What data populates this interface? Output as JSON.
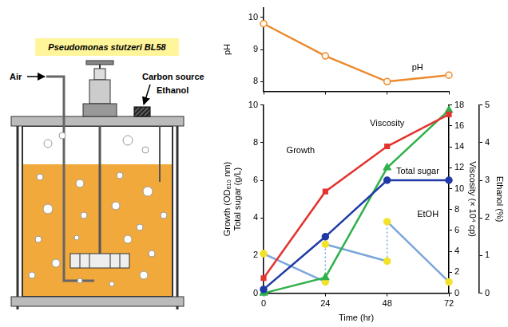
{
  "diagram": {
    "label": "Pseudomonas stutzeri BL58",
    "air": "Air",
    "feed": [
      "Carbon source",
      "Ethanol"
    ]
  },
  "chart_data": [
    {
      "type": "line",
      "ylabel": "pH",
      "x": [
        0,
        24,
        48,
        72
      ],
      "xlim": [
        0,
        72
      ],
      "xticks": [
        0,
        24,
        48,
        72
      ],
      "ylim": [
        7.7,
        10.3
      ],
      "yticks": [
        8,
        9,
        10
      ],
      "tick_labels": "y",
      "grid": false,
      "series": [
        {
          "name": "pH",
          "color": "#ec8a2e",
          "marker": "open_circle",
          "line_style": "solid",
          "values": [
            9.8,
            8.8,
            8.0,
            8.2
          ]
        }
      ]
    },
    {
      "type": "line",
      "xlabel": "Time (hr)",
      "ylabel": [
        "Growth (OD₆₁₀ nm)",
        "Total sugar (g/L)"
      ],
      "y2label": "Viscosity (× 10⁴ cp)",
      "y3label": "Ethanol (%)",
      "x": [
        0,
        24,
        48,
        72
      ],
      "xlim": [
        0,
        72
      ],
      "xticks": [
        0,
        24,
        48,
        72
      ],
      "ylim": [
        0,
        10
      ],
      "yticks": [
        0,
        2,
        4,
        6,
        8,
        10
      ],
      "y2lim": [
        0,
        18
      ],
      "y2ticks": [
        0,
        2,
        4,
        6,
        8,
        10,
        12,
        14,
        16,
        18
      ],
      "y3lim": [
        0,
        5
      ],
      "y3ticks": [
        0,
        1,
        2,
        3,
        4,
        5
      ],
      "grid": false,
      "series": [
        {
          "name": "Growth",
          "color": "#e3342f",
          "marker": "square",
          "line_style": "solid",
          "values": [
            0.8,
            5.4,
            7.8,
            9.5
          ]
        },
        {
          "name": "Total sugar",
          "color": "#1f3aa6",
          "marker": "circle",
          "line_style": "solid",
          "values": [
            0.2,
            3.0,
            6.0,
            6.0
          ]
        },
        {
          "name": "Viscosity",
          "color": "#2fb14c",
          "marker": "triangle",
          "line_style": "solid",
          "axis": "y2",
          "values": [
            0,
            1.5,
            12,
            17.5
          ]
        },
        {
          "name": "EtOH",
          "color": "#7aa6d9",
          "marker": "circle",
          "line_style": "solid",
          "axis": "y3",
          "x": [
            0,
            24,
            24,
            48,
            48,
            72
          ],
          "values": [
            1.05,
            0.3,
            1.3,
            0.85,
            1.9,
            0.3
          ],
          "colors": [
            "#f3e22a",
            "#f3e22a",
            "#f3e22a",
            "#f3e22a",
            "#f3e22a",
            "#f3e22a"
          ]
        }
      ]
    }
  ]
}
